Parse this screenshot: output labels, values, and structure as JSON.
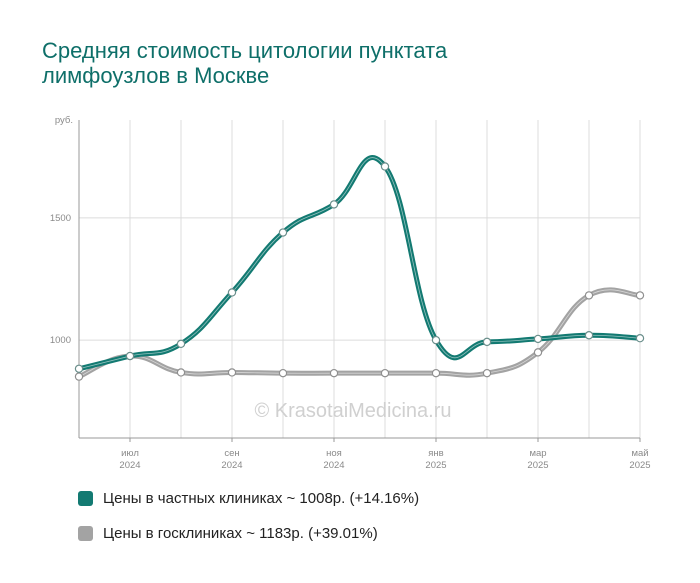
{
  "title_lines": [
    "Средняя стоимость цитологии пунктата",
    "лимфоузлов в Москве"
  ],
  "watermark": "© KrasotaiMedicina.ru",
  "chart_data": {
    "type": "line",
    "y_unit": "руб.",
    "ylim": [
      600,
      1900
    ],
    "y_ticks": [
      1000,
      1500
    ],
    "x_tick_labels": [
      {
        "month": "июл",
        "year": "2024"
      },
      {
        "month": "сен",
        "year": "2024"
      },
      {
        "month": "ноя",
        "year": "2024"
      },
      {
        "month": "янв",
        "year": "2025"
      },
      {
        "month": "мар",
        "year": "2025"
      },
      {
        "month": "май",
        "year": "2025"
      }
    ],
    "categories": [
      "2024-06",
      "2024-07",
      "2024-08",
      "2024-09",
      "2024-10",
      "2024-11",
      "2024-12",
      "2025-01",
      "2025-02",
      "2025-03",
      "2025-04",
      "2025-05"
    ],
    "grid": true,
    "legend_position": "bottom",
    "series": [
      {
        "name": "Цены в частных клиниках ~ 1008р. (+14.16%)",
        "color": "#137a72",
        "values": [
          883,
          935,
          985,
          1195,
          1440,
          1555,
          1710,
          1000,
          993,
          1005,
          1020,
          1008
        ]
      },
      {
        "name": "Цены в госклиниках ~ 1183р. (+39.01%)",
        "color": "#a3a3a3",
        "values": [
          851,
          935,
          868,
          868,
          865,
          865,
          865,
          865,
          865,
          950,
          1183,
          1183
        ]
      }
    ]
  },
  "legend": [
    {
      "label": "Цены в частных клиниках ~ 1008р. (+14.16%)",
      "color": "#137a72"
    },
    {
      "label": "Цены в госклиниках ~ 1183р. (+39.01%)",
      "color": "#a3a3a3"
    }
  ]
}
